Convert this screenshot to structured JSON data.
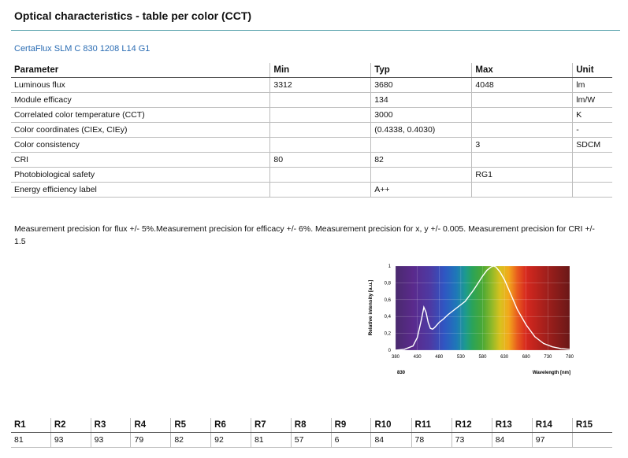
{
  "header": {
    "title": "Optical characteristics - table per color (CCT)",
    "product": "CertaFlux SLM C 830 1208 L14 G1"
  },
  "table": {
    "columns": [
      "Parameter",
      "Min",
      "Typ",
      "Max",
      "Unit"
    ],
    "rows": [
      [
        "Luminous flux",
        "3312",
        "3680",
        "4048",
        "lm"
      ],
      [
        "Module efficacy",
        "",
        "134",
        "",
        "lm/W"
      ],
      [
        "Correlated color temperature (CCT)",
        "",
        "3000",
        "",
        "K"
      ],
      [
        "Color coordinates (CIEx, CIEy)",
        "",
        "(0.4338, 0.4030)",
        "",
        "-"
      ],
      [
        "Color consistency",
        "",
        "",
        "3",
        "SDCM"
      ],
      [
        "CRI",
        "80",
        "82",
        "",
        ""
      ],
      [
        "Photobiological safety",
        "",
        "",
        "RG1",
        ""
      ],
      [
        "Energy efficiency label",
        "",
        "A++",
        "",
        ""
      ]
    ]
  },
  "note": "Measurement precision for flux +/- 5%.Measurement precision for efficacy +/- 6%. Measurement precision for x, y +/- 0.005. Measurement precision for CRI +/- 1.5",
  "chart_data": {
    "type": "line",
    "title": "",
    "xlabel": "Wavelength [nm]",
    "ylabel": "Relative intensity [a.u.]",
    "series_label": "830",
    "xlim": [
      380,
      780
    ],
    "ylim": [
      0,
      1
    ],
    "xticks": [
      "380",
      "430",
      "480",
      "530",
      "580",
      "630",
      "680",
      "730",
      "780"
    ],
    "yticks": [
      "0",
      "0,2",
      "0,4",
      "0,6",
      "0,8",
      "1"
    ],
    "grid": true,
    "series": [
      {
        "x": [
          380,
          400,
          420,
          430,
          440,
          445,
          450,
          455,
          460,
          465,
          470,
          480,
          490,
          500,
          520,
          540,
          560,
          570,
          580,
          590,
          600,
          605,
          610,
          620,
          630,
          640,
          650,
          660,
          680,
          700,
          720,
          740,
          760,
          780
        ],
        "values": [
          0.0,
          0.01,
          0.05,
          0.15,
          0.38,
          0.51,
          0.45,
          0.33,
          0.26,
          0.25,
          0.27,
          0.33,
          0.37,
          0.42,
          0.5,
          0.58,
          0.72,
          0.8,
          0.88,
          0.95,
          0.99,
          1.0,
          0.99,
          0.93,
          0.84,
          0.72,
          0.6,
          0.48,
          0.3,
          0.16,
          0.08,
          0.04,
          0.02,
          0.01
        ]
      }
    ]
  },
  "cri_table": {
    "headers": [
      "R1",
      "R2",
      "R3",
      "R4",
      "R5",
      "R6",
      "R7",
      "R8",
      "R9",
      "R10",
      "R11",
      "R12",
      "R13",
      "R14",
      "R15"
    ],
    "values": [
      "81",
      "93",
      "93",
      "79",
      "82",
      "92",
      "81",
      "57",
      "6",
      "84",
      "78",
      "73",
      "84",
      "97",
      ""
    ]
  }
}
